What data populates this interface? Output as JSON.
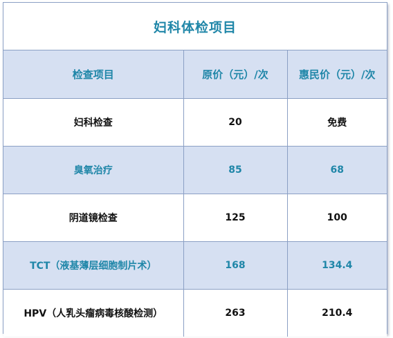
{
  "title": "妇科体检项目",
  "header": {
    "item": "检查项目",
    "original_price": "原价（元）/次",
    "discount_price": "惠民价（元）/次"
  },
  "rows": [
    {
      "item": "妇科检查",
      "original": "20",
      "discount": "免费"
    },
    {
      "item": "臭氧治疗",
      "original": "85",
      "discount": "68"
    },
    {
      "item": "阴道镜检查",
      "original": "125",
      "discount": "100"
    },
    {
      "item": "TCT（液基薄层细胞制片术）",
      "original": "168",
      "discount": "134.4"
    },
    {
      "item": "HPV（人乳头瘤病毒核酸检测）",
      "original": "263",
      "discount": "210.4"
    }
  ],
  "colors": {
    "accent": "#1f86a8",
    "header_bg": "#d6e0f2",
    "border": "#8a9fc4"
  }
}
